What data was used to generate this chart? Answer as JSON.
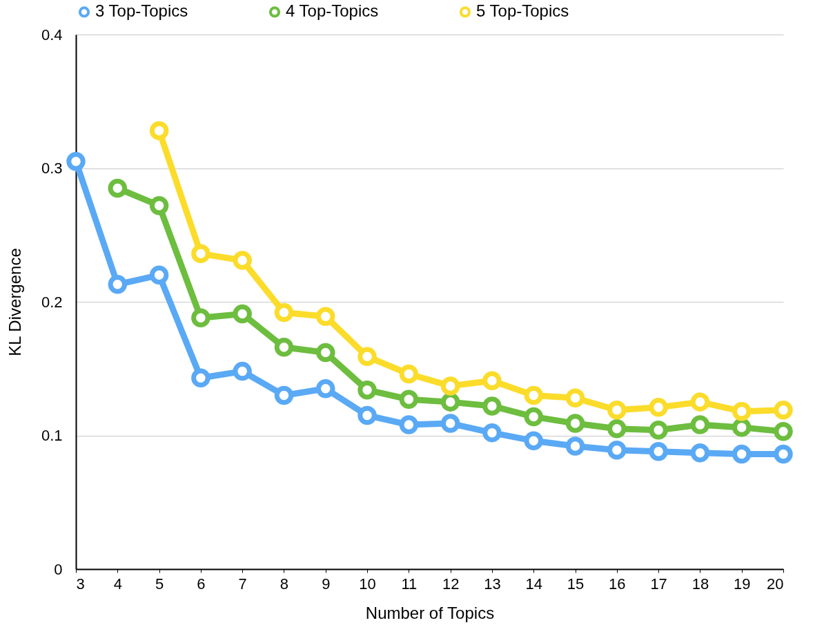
{
  "chart_data": {
    "type": "line",
    "xlabel": "Number of Topics",
    "ylabel": "KL Divergence",
    "x": [
      3,
      4,
      5,
      6,
      7,
      8,
      9,
      10,
      11,
      12,
      13,
      14,
      15,
      16,
      17,
      18,
      19,
      20
    ],
    "series": [
      {
        "name": "3 Top-Topics",
        "color": "#5aa9f5",
        "values": [
          0.305,
          0.213,
          0.22,
          0.143,
          0.148,
          0.13,
          0.135,
          0.115,
          0.108,
          0.109,
          0.102,
          0.096,
          0.092,
          0.089,
          0.088,
          0.087,
          0.086,
          0.086
        ]
      },
      {
        "name": "4 Top-Topics",
        "color": "#6dbd3f",
        "values": [
          null,
          0.285,
          0.272,
          0.188,
          0.191,
          0.166,
          0.162,
          0.134,
          0.127,
          0.125,
          0.122,
          0.114,
          0.109,
          0.105,
          0.104,
          0.108,
          0.106,
          0.103
        ]
      },
      {
        "name": "5 Top-Topics",
        "color": "#fbdc2b",
        "values": [
          null,
          null,
          0.328,
          0.236,
          0.231,
          0.192,
          0.189,
          0.159,
          0.146,
          0.137,
          0.141,
          0.13,
          0.128,
          0.119,
          0.121,
          0.125,
          0.118,
          0.119
        ]
      }
    ],
    "xlim": [
      3,
      20
    ],
    "xticks": [
      3,
      4,
      5,
      6,
      7,
      8,
      9,
      10,
      11,
      12,
      13,
      14,
      15,
      16,
      17,
      18,
      19,
      20
    ],
    "ylim": [
      0,
      0.4
    ],
    "yticks": [
      0,
      0.1,
      0.2,
      0.3,
      0.4
    ],
    "grid": "y",
    "legend": "top",
    "marker": "circle",
    "line_style": "solid"
  }
}
